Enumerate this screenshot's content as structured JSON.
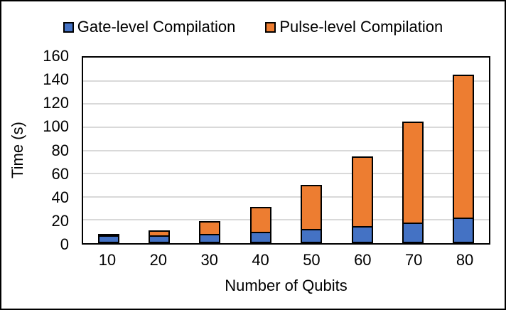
{
  "legend": [
    {
      "label": "Gate-level Compilation",
      "color": "#4472C4"
    },
    {
      "label": "Pulse-level Compilation",
      "color": "#ED7D31"
    }
  ],
  "chart_data": {
    "type": "bar",
    "stacked": true,
    "title": "",
    "xlabel": "Number of Qubits",
    "ylabel": "Time (s)",
    "categories": [
      10,
      20,
      30,
      40,
      50,
      60,
      70,
      80
    ],
    "series": [
      {
        "name": "Gate-level Compilation",
        "color": "#4472C4",
        "values": [
          7,
          7,
          8,
          10,
          12,
          15,
          18,
          22
        ]
      },
      {
        "name": "Pulse-level Compilation",
        "color": "#ED7D31",
        "values": [
          1,
          4,
          11,
          21,
          38,
          60,
          87,
          123
        ]
      }
    ],
    "totals": [
      8,
      11,
      19,
      31,
      50,
      75,
      105,
      145
    ],
    "ylim": [
      0,
      160
    ],
    "yticks": [
      0,
      20,
      40,
      60,
      80,
      100,
      120,
      140,
      160
    ],
    "grid": true,
    "gridline_color": "#D9D9D9",
    "bar_border_color": "#000000",
    "legend_position": "top"
  }
}
